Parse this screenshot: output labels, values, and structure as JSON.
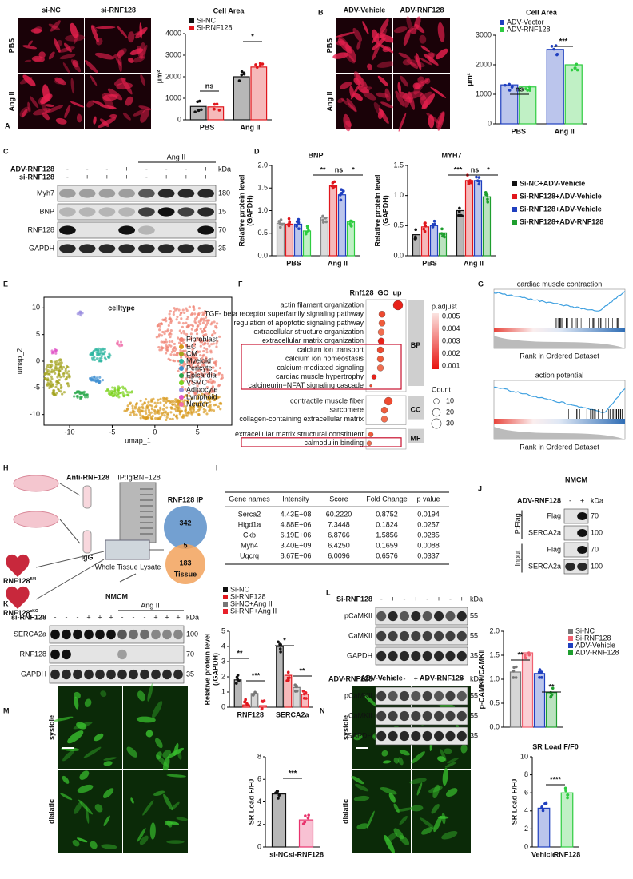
{
  "panel_labels": [
    "A",
    "B",
    "C",
    "D",
    "E",
    "F",
    "G",
    "H",
    "I",
    "J",
    "K",
    "L",
    "M",
    "N"
  ],
  "micrographs": {
    "A": {
      "columns": [
        "si-NC",
        "si-RNF128"
      ],
      "rows": [
        "PBS",
        "Ang II"
      ]
    },
    "B": {
      "columns": [
        "ADV-Vehicle",
        "ADV-RNF128"
      ],
      "rows": [
        "PBS",
        "Ang II"
      ]
    },
    "M": {
      "columns": [
        "si-NC",
        "si-RNF128"
      ],
      "rows": [
        "systole",
        "dialatic"
      ]
    },
    "N": {
      "columns": [
        "ADV-Vehicle",
        "ADV-RNF128"
      ],
      "rows": [
        "systole",
        "dialatic"
      ]
    }
  },
  "chart_data": [
    {
      "type": "bar",
      "title": "Cell Area",
      "ylabel": "μm²",
      "categories": [
        "PBS",
        "Ang II"
      ],
      "series": [
        {
          "name": "Si-NC",
          "color": "#111111",
          "values": [
            620,
            2000
          ]
        },
        {
          "name": "Si-RNF128",
          "color": "#e0161c",
          "values": [
            600,
            2450
          ]
        }
      ],
      "ylim": [
        0,
        4000
      ],
      "yticks": [
        0,
        1000,
        2000,
        3000,
        4000
      ],
      "annotations": [
        "ns",
        "*"
      ]
    },
    {
      "type": "bar",
      "title": "Cell Area",
      "ylabel": "μm²",
      "categories": [
        "PBS",
        "Ang II"
      ],
      "series": [
        {
          "name": "ADV-Vector",
          "color": "#1f3fbf",
          "values": [
            1320,
            2520
          ]
        },
        {
          "name": "ADV-RNF128",
          "color": "#2ecc40",
          "values": [
            1250,
            2000
          ]
        }
      ],
      "ylim": [
        0,
        3000
      ],
      "yticks": [
        0,
        1000,
        2000,
        3000
      ],
      "annotations": [
        "ns",
        "***"
      ]
    },
    {
      "type": "bar",
      "title": "BNP",
      "ylabel": [
        "Relative protein level",
        "(GAPDH)"
      ],
      "categories": [
        "PBS",
        "Ang II"
      ],
      "series": [
        {
          "color": "#888888",
          "values": [
            0.72,
            0.85
          ]
        },
        {
          "color": "#e0161c",
          "values": [
            0.7,
            1.55
          ]
        },
        {
          "color": "#1f3fbf",
          "values": [
            0.7,
            1.35
          ]
        },
        {
          "color": "#2ecc40",
          "values": [
            0.55,
            0.75
          ]
        }
      ],
      "ylim": [
        0,
        2
      ],
      "yticks": [
        {
          "value": 0,
          "label": "0.0"
        },
        {
          "value": 0.5,
          "label": "0.5"
        },
        {
          "value": 1,
          "label": "1.0"
        },
        {
          "value": 1.5,
          "label": "1.5"
        },
        {
          "value": 2,
          "label": "2.0"
        }
      ],
      "annotations": [
        "**",
        "ns",
        "*"
      ]
    },
    {
      "type": "bar",
      "title": "MYH7",
      "ylabel": [
        "Relative protein level",
        "(GAPDH)"
      ],
      "categories": [
        "PBS",
        "Ang II"
      ],
      "series": [
        {
          "name": "Si-NC+ADV-Vehicle",
          "color": "#111111",
          "values": [
            0.35,
            0.75
          ]
        },
        {
          "name": "Si-RNF128+ADV-Vehicle",
          "color": "#e0161c",
          "values": [
            0.48,
            1.25
          ]
        },
        {
          "name": "Si-RNF128+ADV-Vehicle",
          "color": "#1f3fbf",
          "values": [
            0.5,
            1.25
          ]
        },
        {
          "name": "Si-RNF128+ADV-RNF128",
          "color": "#1e9e2e",
          "values": [
            0.38,
            0.98
          ]
        }
      ],
      "ylim": [
        0,
        1.5
      ],
      "yticks": [
        {
          "value": 0,
          "label": "0.0"
        },
        {
          "value": 0.5,
          "label": "0.5"
        },
        {
          "value": 1,
          "label": "1.0"
        },
        {
          "value": 1.5,
          "label": "1.5"
        }
      ],
      "annotations": [
        "***",
        "ns",
        "*"
      ]
    },
    {
      "type": "bar",
      "ylabel": [
        "Relative protein level",
        "(/GAPDH)"
      ],
      "categories": [
        "RNF128",
        "SERCA2a"
      ],
      "series": [
        {
          "name": "Si-NC",
          "color": "#111111",
          "values": [
            1.8,
            4.0
          ]
        },
        {
          "name": "Si-RNF128",
          "color": "#e0161c",
          "values": [
            0.15,
            2.1
          ]
        },
        {
          "name": "Si-NC+Ang II",
          "color": "#777777",
          "values": [
            0.9,
            1.3
          ]
        },
        {
          "name": "Si-RNF+Ang II",
          "color": "#e8202a",
          "values": [
            0.1,
            0.85
          ]
        }
      ],
      "ylim": [
        0,
        5
      ],
      "yticks": [
        0,
        1,
        2,
        3,
        4,
        5
      ],
      "annotations": [
        "**",
        "***",
        "*",
        "**"
      ]
    },
    {
      "type": "bar",
      "ylabel": "p-CAMKII/CAMKII",
      "categories": [
        null
      ],
      "series": [
        {
          "name": "Si-NC",
          "color": "#777777",
          "values": [
            1.15
          ]
        },
        {
          "name": "Si-RNF128",
          "color": "#f06070",
          "values": [
            1.55
          ]
        },
        {
          "name": "ADV-Vehicle",
          "color": "#1f3fbf",
          "values": [
            1.12
          ]
        },
        {
          "name": "ADV-RNF128",
          "color": "#1e9e2e",
          "values": [
            0.72
          ]
        }
      ],
      "ylim": [
        0,
        2
      ],
      "yticks": [
        {
          "value": 0,
          "label": "0.0"
        },
        {
          "value": 0.5,
          "label": "0.5"
        },
        {
          "value": 1,
          "label": "1.0"
        },
        {
          "value": 1.5,
          "label": "1.5"
        },
        {
          "value": 2,
          "label": "2.0"
        }
      ],
      "annotations": [
        "**",
        "**"
      ]
    },
    {
      "type": "bar",
      "ylabel": "SR Load F/F0",
      "categories": [
        "si-NC",
        "si-RNF128"
      ],
      "values": [
        4.7,
        2.4
      ],
      "colors": [
        "#111111",
        "#e8336d"
      ],
      "ylim": [
        0,
        8
      ],
      "yticks": [
        0,
        2,
        4,
        6,
        8
      ],
      "annotations": [
        "***"
      ]
    },
    {
      "type": "bar",
      "title": "SR Load F/F0",
      "ylabel": "SR Load F/F0",
      "categories": [
        "Vehicle",
        "RNF128"
      ],
      "values": [
        4.3,
        6.0
      ],
      "colors": [
        "#1f3fbf",
        "#2ecc40"
      ],
      "ylim": [
        0,
        10
      ],
      "yticks": [
        0,
        2,
        4,
        6,
        8,
        10
      ],
      "annotations": [
        "****"
      ]
    }
  ],
  "blots": {
    "C": {
      "header": "Ang II",
      "kda_label": "kDa",
      "treatments": [
        {
          "name": "ADV-RNF128",
          "signs": [
            "-",
            "-",
            "-",
            "+",
            "-",
            "-",
            "-",
            "+"
          ]
        },
        {
          "name": "si-RNF128",
          "signs": [
            "-",
            "+",
            "+",
            "+",
            "-",
            "+",
            "+",
            "+"
          ]
        }
      ],
      "bands": [
        {
          "name": "Myh7",
          "kda": "180"
        },
        {
          "name": "BNP",
          "kda": "15"
        },
        {
          "name": "RNF128",
          "kda": "70"
        },
        {
          "name": "GAPDH",
          "kda": "35"
        }
      ]
    },
    "K": {
      "title": "NMCM",
      "header": "Ang II",
      "kda_label": "kDa",
      "treatments": [
        {
          "name": "si-RNF128",
          "signs": [
            "-",
            "-",
            "-",
            "+",
            "+",
            "+",
            "-",
            "-",
            "-",
            "+",
            "+",
            "+"
          ]
        }
      ],
      "bands": [
        {
          "name": "SERCA2a",
          "kda": "100"
        },
        {
          "name": "RNF128",
          "kda": "70"
        },
        {
          "name": "GAPDH",
          "kda": "35"
        }
      ]
    },
    "L_top": {
      "kda_label": "kDa",
      "treatments": [
        {
          "name": "Si-RNF128",
          "signs": [
            "-",
            "+",
            "-",
            "+",
            "-",
            "+",
            "-",
            "+"
          ]
        }
      ],
      "bands": [
        {
          "name": "pCaMKII",
          "kda": "55"
        },
        {
          "name": "CaMKII",
          "kda": "55"
        },
        {
          "name": "GAPDH",
          "kda": "35"
        }
      ]
    },
    "L_bottom": {
      "kda_label": "kDa",
      "treatments": [
        {
          "name": "ADV-RNF128",
          "signs": [
            "-",
            "+",
            "-",
            "+",
            "-",
            "+",
            "-",
            "+"
          ]
        }
      ],
      "bands": [
        {
          "name": "pCaMKII",
          "kda": "55"
        },
        {
          "name": "CaMKII",
          "kda": "55"
        },
        {
          "name": "GAPDH",
          "kda": "35"
        }
      ]
    },
    "J": {
      "title": "NMCM",
      "kda_label": "kDa",
      "groups": [
        "IP:Flag",
        "Input"
      ],
      "treatments": [
        {
          "name": "ADV-RNF128",
          "signs": [
            "-",
            "+"
          ]
        }
      ],
      "bands": [
        {
          "name": "Flag",
          "kda": "70"
        },
        {
          "name": "SERCA2a",
          "kda": "100"
        },
        {
          "name": "Flag",
          "kda": "70"
        },
        {
          "name": "SERCA2a",
          "kda": "100"
        }
      ]
    }
  },
  "umap": {
    "title": "celltype",
    "xlabel": "umap_1",
    "ylabel": "umap_2",
    "xlim": [
      -13,
      9
    ],
    "ylim": [
      -12,
      12
    ],
    "xticks": [
      -10,
      -5,
      0,
      5
    ],
    "yticks": [
      -10,
      -5,
      0,
      5,
      10
    ],
    "legend": [
      {
        "name": "Fibroblast",
        "color": "#f08070"
      },
      {
        "name": "EC",
        "color": "#d99a1e"
      },
      {
        "name": "CM",
        "color": "#a3a31c"
      },
      {
        "name": "Myeloid",
        "color": "#2bb5a0"
      },
      {
        "name": "Pericyte",
        "color": "#3d8fd1"
      },
      {
        "name": "Epicardial",
        "color": "#2aa84a"
      },
      {
        "name": "VSMC",
        "color": "#7ed321"
      },
      {
        "name": "Adipocyte",
        "color": "#9b8fe0"
      },
      {
        "name": "Lymphoid",
        "color": "#e055c8"
      },
      {
        "name": "Neuron",
        "color": "#f06ea9"
      }
    ]
  },
  "go": {
    "title": "Rnf128_GO_up",
    "groups": [
      {
        "name": "BP",
        "terms": [
          "actin filament organization",
          "TGF- beta receptor superfamily signaling pathway",
          "regulation of apoptotic signaling pathway",
          "extracellular structure organization",
          "extracellular matrix organization",
          "calcium ion transport",
          "calcium ion homeostasis",
          "calcium-mediated signaling",
          "cardiac muscle hypertrophy",
          "calcineurin−NFAT signaling cascade"
        ]
      },
      {
        "name": "CC",
        "terms": [
          "contractile muscle fiber",
          "sarcomere",
          "collagen-containing extracellular matrix"
        ]
      },
      {
        "name": "MF",
        "terms": [
          "extracellular matrix structural constituent",
          "calmodulin binding"
        ]
      }
    ],
    "color_title": "p.adjust",
    "color_ticks": [
      0.005,
      0.004,
      0.003,
      0.002,
      0.001
    ],
    "size_title": "Count",
    "size_ticks": [
      10,
      20,
      30
    ]
  },
  "gsea": {
    "plots": [
      {
        "title": "cardiac muscle contraction",
        "xlabel": "Rank in Ordered Dataset"
      },
      {
        "title": "action potential",
        "xlabel": "Rank in Ordered Dataset"
      }
    ]
  },
  "ip_diagram": {
    "antibody": "Anti-RNF128",
    "control": "IgG",
    "gel_lanes": [
      "IP:IgG",
      "RNF128"
    ],
    "lysate": "Whole Tissue Lysate",
    "mice": [
      {
        "base": "RNF128",
        "sup": "fl/fl"
      },
      {
        "base": "RNF128",
        "sup": "cKO"
      }
    ],
    "venn": {
      "title": "RNF128 IP",
      "ip_only": 342,
      "overlap": 5,
      "tissue_only": 183,
      "tissue": "Tissue"
    }
  },
  "table": {
    "header": [
      "Gene names",
      "Intensity",
      "Score",
      "Fold Change",
      "p value"
    ],
    "rows": [
      [
        "Serca2",
        "4.43E+08",
        "60.2220",
        "0.8752",
        "0.0194"
      ],
      [
        "Higd1a",
        "4.88E+06",
        "7.3448",
        "0.1824",
        "0.0257"
      ],
      [
        "Ckb",
        "6.19E+06",
        "6.8766",
        "1.5856",
        "0.0285"
      ],
      [
        "Myh4",
        "3.40E+09",
        "6.4250",
        "0.1659",
        "0.0088"
      ],
      [
        "Uqcrq",
        "8.67E+06",
        "6.0096",
        "0.6576",
        "0.0337"
      ]
    ]
  }
}
